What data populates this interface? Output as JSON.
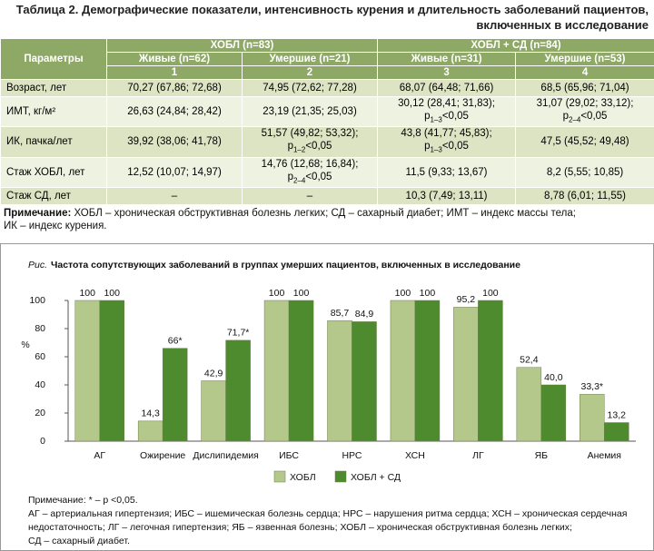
{
  "table": {
    "title": [
      "Таблица 2. Демографические показатели, интенсивность курения и длительность заболеваний пациентов,",
      "включенных в исследование"
    ],
    "header": {
      "parameters": "Параметры",
      "groups": [
        "ХОБЛ (n=83)",
        "ХОБЛ + СД (n=84)"
      ],
      "subgroups": [
        "Живые (n=62)",
        "Умершие (n=21)",
        "Живые (n=31)",
        "Умершие (n=53)"
      ],
      "numbers": [
        "1",
        "2",
        "3",
        "4"
      ]
    },
    "rows": [
      {
        "label": "Возраст, лет",
        "cells": [
          {
            "value": "70,27 (67,86; 72,68)"
          },
          {
            "value": "74,95 (72,62; 77,28)"
          },
          {
            "value": "68,07 (64,48; 71,66)"
          },
          {
            "value": "68,5 (65,96; 71,04)"
          }
        ]
      },
      {
        "label": "ИМТ, кг/м²",
        "cells": [
          {
            "value": "26,63 (24,84; 28,42)"
          },
          {
            "value": "23,19 (21,35; 25,03)"
          },
          {
            "value": "30,12 (28,41; 31,83);",
            "p": "p",
            "sub": "1–3",
            "rest": "<0,05"
          },
          {
            "value": "31,07 (29,02; 33,12);",
            "p": "p",
            "sub": "2–4",
            "rest": "<0,05"
          }
        ]
      },
      {
        "label": "ИК, пачка/лет",
        "cells": [
          {
            "value": "39,92 (38,06; 41,78)"
          },
          {
            "value": "51,57 (49,82; 53,32);",
            "p": "p",
            "sub": "1–2",
            "rest": "<0,05"
          },
          {
            "value": "43,8 (41,77; 45,83);",
            "p": "p",
            "sub": "1–3",
            "rest": "<0,05"
          },
          {
            "value": "47,5 (45,52; 49,48)"
          }
        ]
      },
      {
        "label": "Стаж ХОБЛ, лет",
        "cells": [
          {
            "value": "12,52 (10,07; 14,97)"
          },
          {
            "value": "14,76 (12,68; 16,84);",
            "p": "p",
            "sub": "2–4",
            "rest": "<0,05"
          },
          {
            "value": "11,5 (9,33; 13,67)"
          },
          {
            "value": "8,2 (5,55; 10,85)"
          }
        ]
      },
      {
        "label": "Стаж СД, лет",
        "cells": [
          {
            "value": "–"
          },
          {
            "value": "–"
          },
          {
            "value": "10,3 (7,49; 13,11)"
          },
          {
            "value": "8,78 (6,01; 11,55)"
          }
        ]
      }
    ],
    "note": {
      "label": "Примечание:",
      "lines": [
        "ХОБЛ – хроническая обструктивная болезнь легких; СД – сахарный диабет; ИМТ – индекс массы тела;",
        "ИК – индекс курения."
      ]
    }
  },
  "chart_data": {
    "type": "bar",
    "figure_label": "Рис.",
    "title": "Частота сопутствующих заболеваний в группах умерших пациентов, включенных в исследование",
    "y_label": "%",
    "categories": [
      "АГ",
      "Ожирение",
      "Дислипидемия",
      "ИБС",
      "НРС",
      "ХСН",
      "ЛГ",
      "ЯБ",
      "Анемия"
    ],
    "series": [
      {
        "name": "ХОБЛ",
        "color": "#b3c88a",
        "values": [
          100,
          14.3,
          42.9,
          100,
          85.7,
          100,
          95.2,
          52.4,
          33.3
        ],
        "value_labels": [
          "100",
          "14,3",
          "42,9",
          "100",
          "85,7",
          "100",
          "95,2",
          "52,4",
          "33,3*"
        ]
      },
      {
        "name": "ХОБЛ + СД",
        "color": "#4e8a2e",
        "values": [
          100,
          66,
          71.7,
          100,
          84.9,
          100,
          100,
          40.0,
          13.2
        ],
        "value_labels": [
          "100",
          "66*",
          "71,7*",
          "100",
          "84,9",
          "100",
          "100",
          "40,0",
          "13,2"
        ]
      }
    ],
    "ylim": [
      0,
      100
    ],
    "yticks": [
      0,
      20,
      40,
      60,
      80,
      100
    ],
    "notes": [
      "Примечание: * – р <0,05.",
      "АГ – артериальная гипертензия; ИБС – ишемическая болезнь сердца; НРС – нарушения ритма сердца; ХСН – хроническая сердечная",
      "недостаточность; ЛГ – легочная гипертензия; ЯБ – язвенная болезнь; ХОБЛ – хроническая обструктивная болезнь легких;",
      "СД – сахарный диабет."
    ]
  }
}
